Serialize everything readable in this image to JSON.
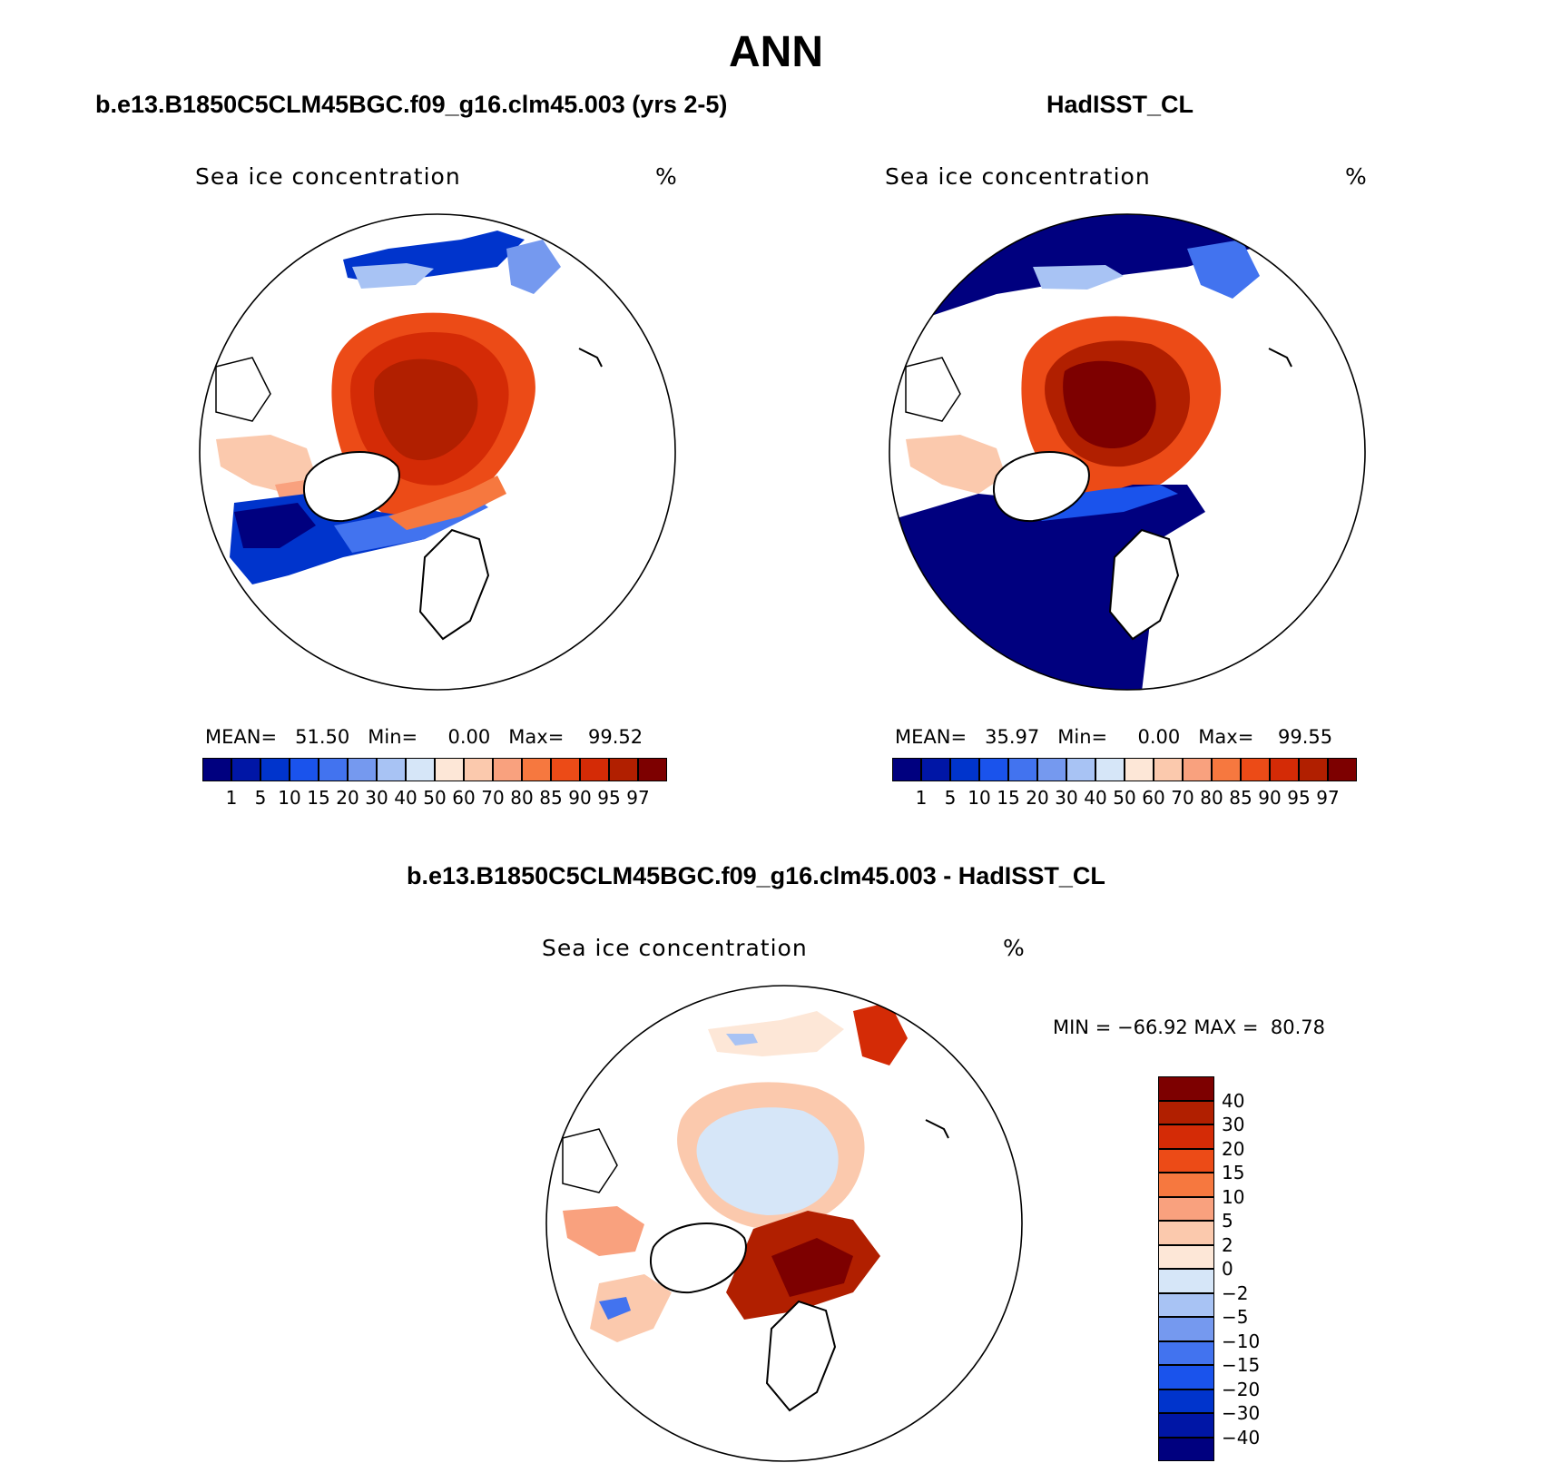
{
  "page": {
    "title": "ANN",
    "panels": [
      {
        "case_title": "b.e13.B1850C5CLM45BGC.f09_g16.clm45.003 (yrs 2-5)",
        "field_label": "Sea ice concentration",
        "units": "%",
        "stats": {
          "mean_label": "MEAN=",
          "mean": "51.50",
          "min_label": "Min=",
          "min": "0.00",
          "max_label": "Max=",
          "max": "99.52"
        }
      },
      {
        "case_title": "HadISST_CL",
        "field_label": "Sea ice concentration",
        "units": "%",
        "stats": {
          "mean_label": "MEAN=",
          "mean": "35.97",
          "min_label": "Min=",
          "min": "0.00",
          "max_label": "Max=",
          "max": "99.55"
        }
      }
    ],
    "diff_panel": {
      "case_title": "b.e13.B1850C5CLM45BGC.f09_g16.clm45.003 - HadISST_CL",
      "field_label": "Sea ice concentration",
      "units": "%",
      "minmax": {
        "min_label": "MIN =",
        "min": "−66.92",
        "max_label": "MAX =",
        "max": "80.78"
      }
    },
    "colorbar": {
      "levels": [
        "1",
        "5",
        "10",
        "15",
        "20",
        "30",
        "40",
        "50",
        "60",
        "70",
        "80",
        "85",
        "90",
        "95",
        "97"
      ],
      "colors": [
        "#00007f",
        "#0016a6",
        "#0034cc",
        "#1a53ec",
        "#4273ef",
        "#7599ef",
        "#a8c3f4",
        "#d6e6f8",
        "#fde7d7",
        "#fbc9ad",
        "#f9a17e",
        "#f6783f",
        "#ec4b17",
        "#d42b06",
        "#b11f00",
        "#7d0000"
      ]
    },
    "diff_colorbar": {
      "levels": [
        "40",
        "30",
        "20",
        "15",
        "10",
        "5",
        "2",
        "0",
        "−2",
        "−5",
        "−10",
        "−15",
        "−20",
        "−30",
        "−40"
      ],
      "colors": [
        "#7d0000",
        "#b11f00",
        "#d42b06",
        "#ec4b17",
        "#f6783f",
        "#f9a17e",
        "#fbc9ad",
        "#fde7d7",
        "#d6e6f8",
        "#a8c3f4",
        "#7599ef",
        "#4273ef",
        "#1a53ec",
        "#0034cc",
        "#0016a6",
        "#00007f"
      ]
    }
  }
}
